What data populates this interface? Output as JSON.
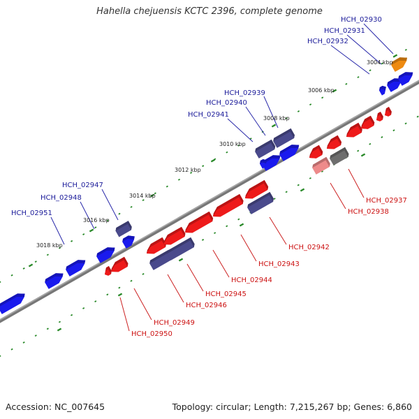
{
  "title": "Hahella chejuensis KCTC 2396, complete genome",
  "footer": {
    "accession": "Accession: NC_007645",
    "summary": "Topology: circular; Length: 7,215,267 bp; Genes: 6,860"
  },
  "colors": {
    "forward": "#1a1aee",
    "reverse": "#ee1a1a",
    "slate": "#4a4a8c",
    "gray": "#6e6e6e",
    "orange": "#ee8a10",
    "pink": "#ee8a8a",
    "forward_label": "#1a1a99",
    "reverse_label": "#cc1111",
    "tick": "#2a8a2a",
    "backbone": "#777777"
  },
  "scale": {
    "ticks": [
      {
        "label": "3004 kbp",
        "kbp": 3004
      },
      {
        "label": "3006 kbp",
        "kbp": 3006
      },
      {
        "label": "3008 kbp",
        "kbp": 3008
      },
      {
        "label": "3010 kbp",
        "kbp": 3010
      },
      {
        "label": "3012 kbp",
        "kbp": 3012
      },
      {
        "label": "3014 kbp",
        "kbp": 3014
      },
      {
        "label": "3016 kbp",
        "kbp": 3016
      },
      {
        "label": "3018 kbp",
        "kbp": 3018
      }
    ]
  },
  "genes": [
    {
      "id": "HCH_02930",
      "strand": "+",
      "type": "orange"
    },
    {
      "id": "HCH_02931",
      "strand": "+",
      "type": "forward"
    },
    {
      "id": "HCH_02932",
      "strand": "+",
      "type": "forward"
    },
    {
      "id": "HCH_02937",
      "strand": "-",
      "type": "gray"
    },
    {
      "id": "HCH_02938",
      "strand": "-",
      "type": "pink"
    },
    {
      "id": "HCH_02939",
      "strand": "+",
      "type": "slate"
    },
    {
      "id": "HCH_02940",
      "strand": "+",
      "type": "slate"
    },
    {
      "id": "HCH_02941",
      "strand": "+",
      "type": "forward"
    },
    {
      "id": "HCH_02942",
      "strand": "-",
      "type": "slate"
    },
    {
      "id": "HCH_02943",
      "strand": "-",
      "type": "reverse"
    },
    {
      "id": "HCH_02944",
      "strand": "-",
      "type": "reverse"
    },
    {
      "id": "HCH_02945",
      "strand": "-",
      "type": "slate"
    },
    {
      "id": "HCH_02946",
      "strand": "-",
      "type": "slate"
    },
    {
      "id": "HCH_02947",
      "strand": "+",
      "type": "slate"
    },
    {
      "id": "HCH_02948",
      "strand": "+",
      "type": "forward"
    },
    {
      "id": "HCH_02949",
      "strand": "-",
      "type": "reverse"
    },
    {
      "id": "HCH_02950",
      "strand": "-",
      "type": "reverse"
    },
    {
      "id": "HCH_02951",
      "strand": "+",
      "type": "forward"
    }
  ]
}
